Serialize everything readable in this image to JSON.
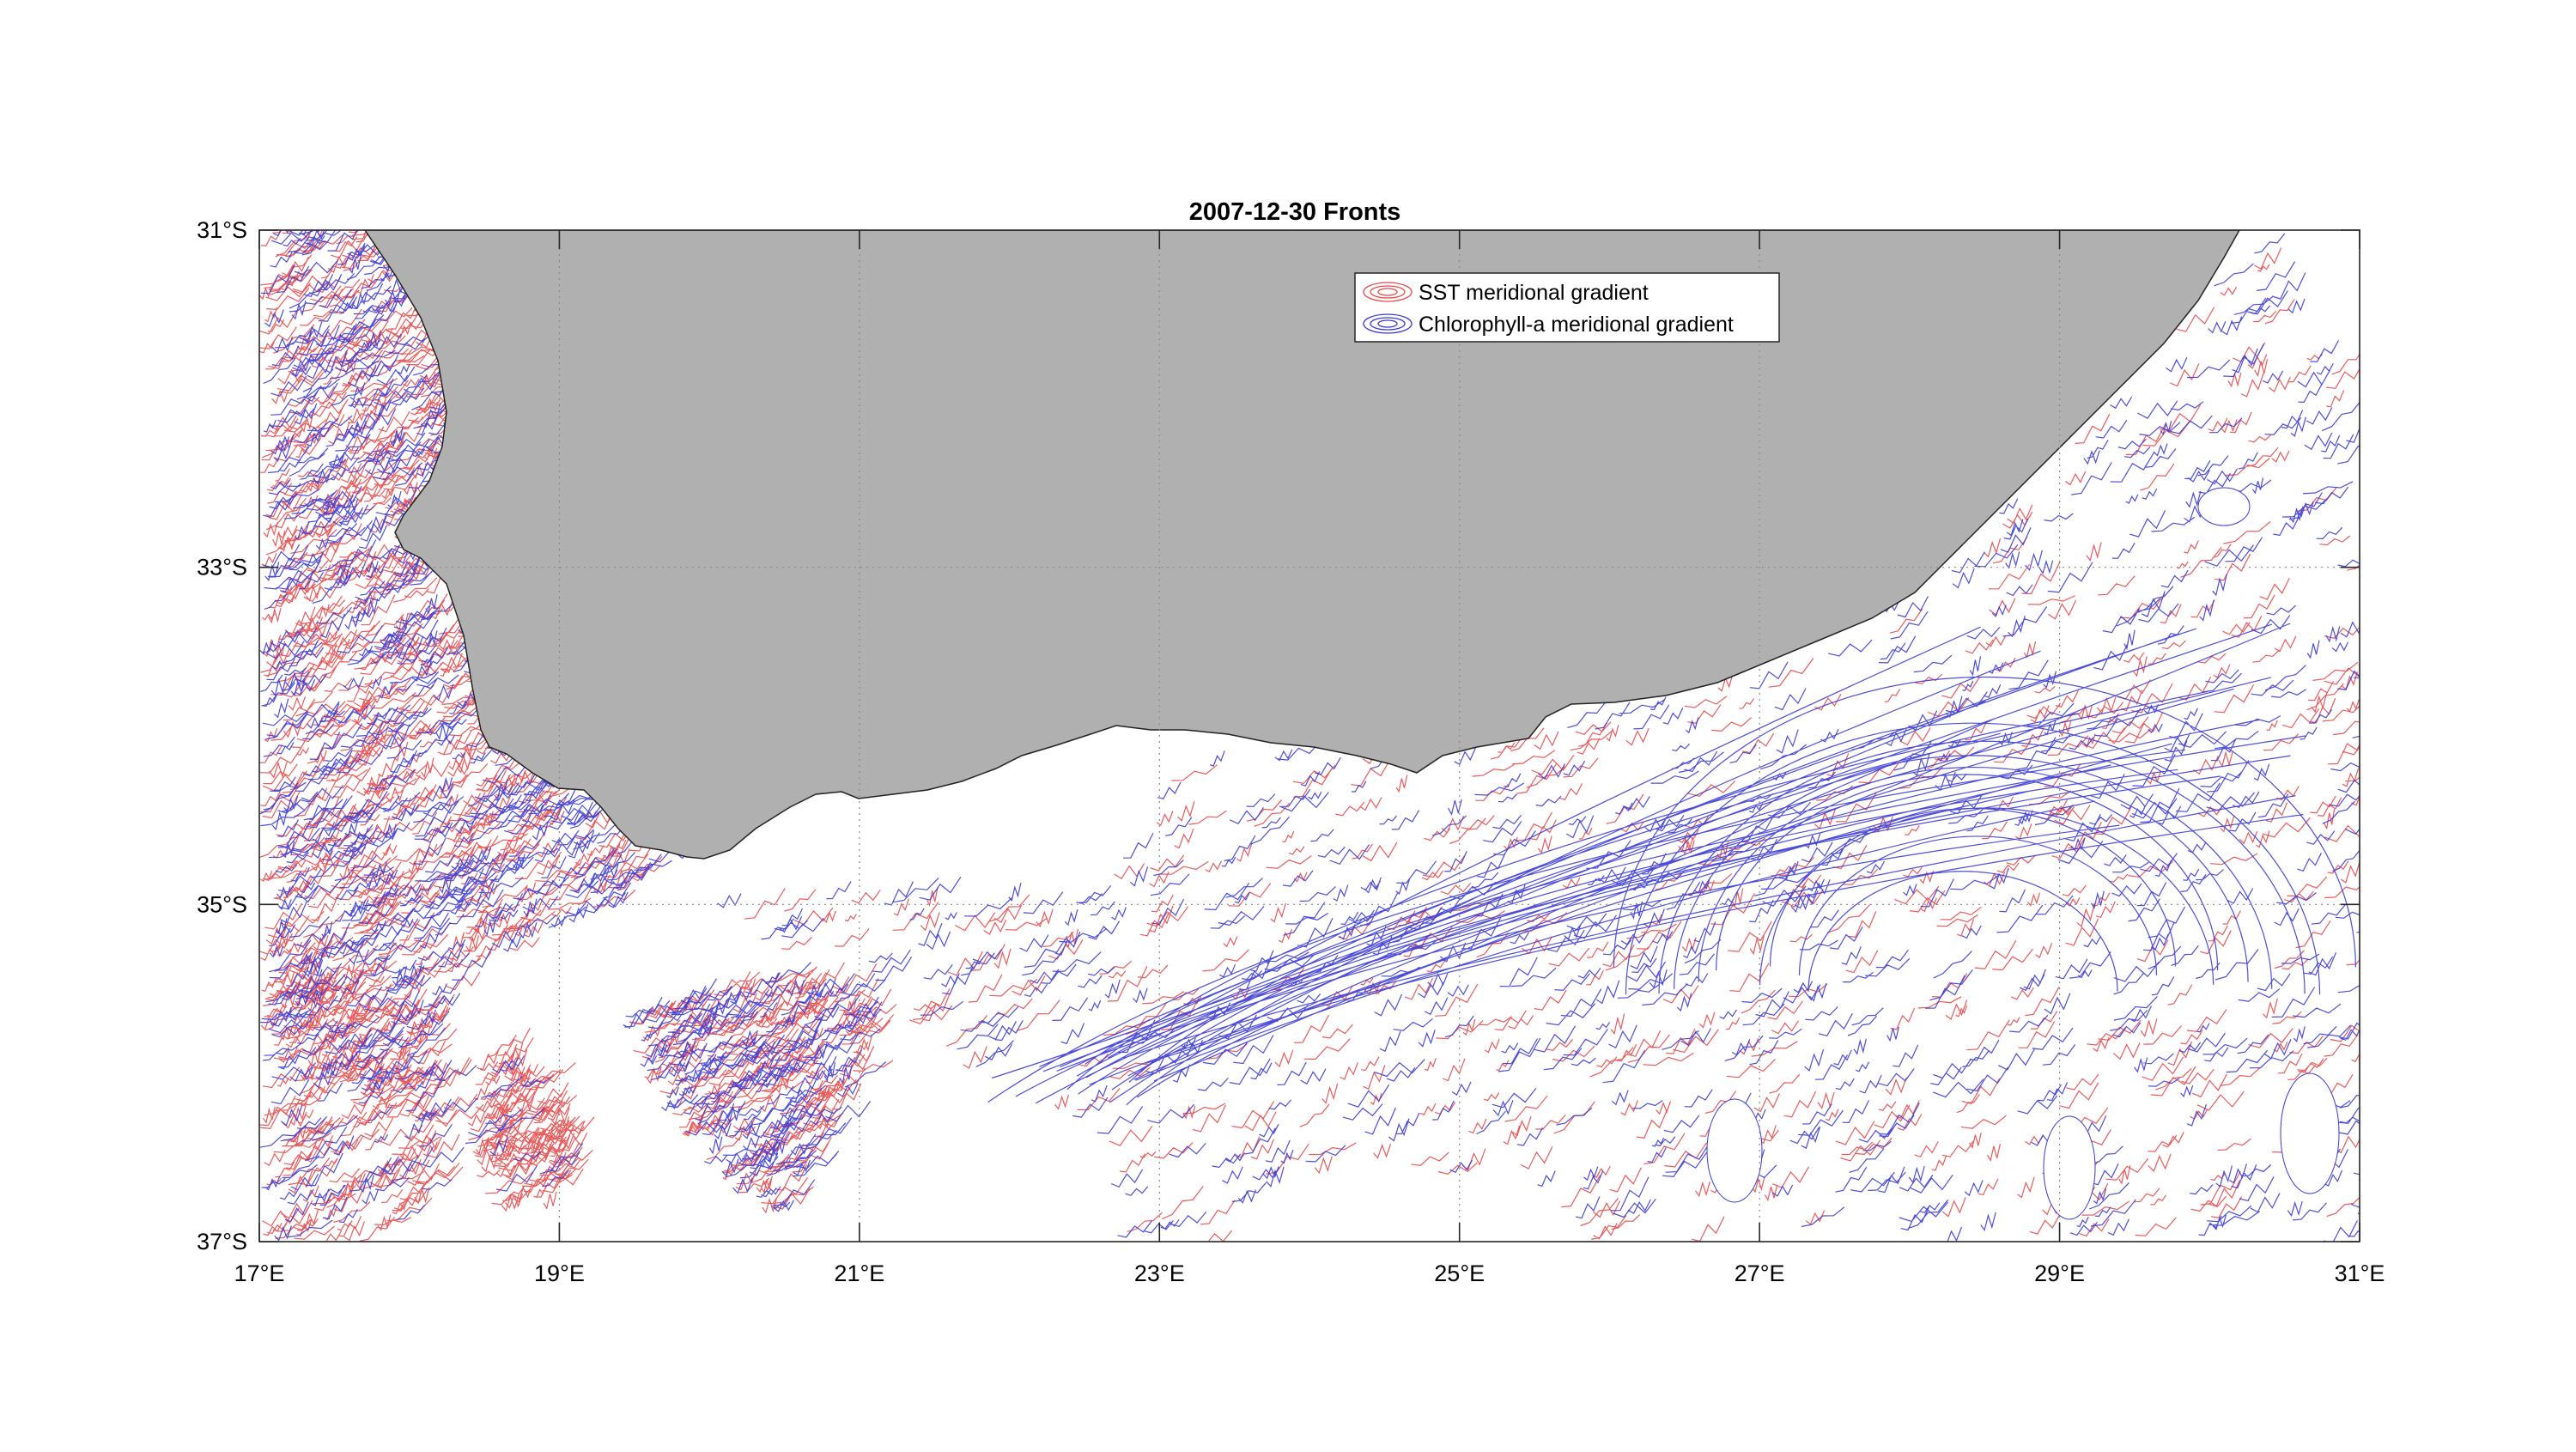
{
  "title": "2007-12-30 Fronts",
  "map": {
    "lon_range": [
      17,
      31
    ],
    "lat_range": [
      -37,
      -31
    ],
    "grid": "dotted",
    "land_color": "#b0b0b0",
    "x_ticks": [
      "17°E",
      "19°E",
      "21°E",
      "23°E",
      "25°E",
      "27°E",
      "29°E",
      "31°E"
    ],
    "y_ticks": [
      "31°S",
      "33°S",
      "35°S",
      "37°S"
    ]
  },
  "legend": {
    "placement": "top-center",
    "entries": [
      {
        "label": "SST meridional gradient",
        "color": "#e8494a"
      },
      {
        "label": "Chlorophyll-a meridional gradient",
        "color": "#3a3ad6"
      }
    ]
  }
}
